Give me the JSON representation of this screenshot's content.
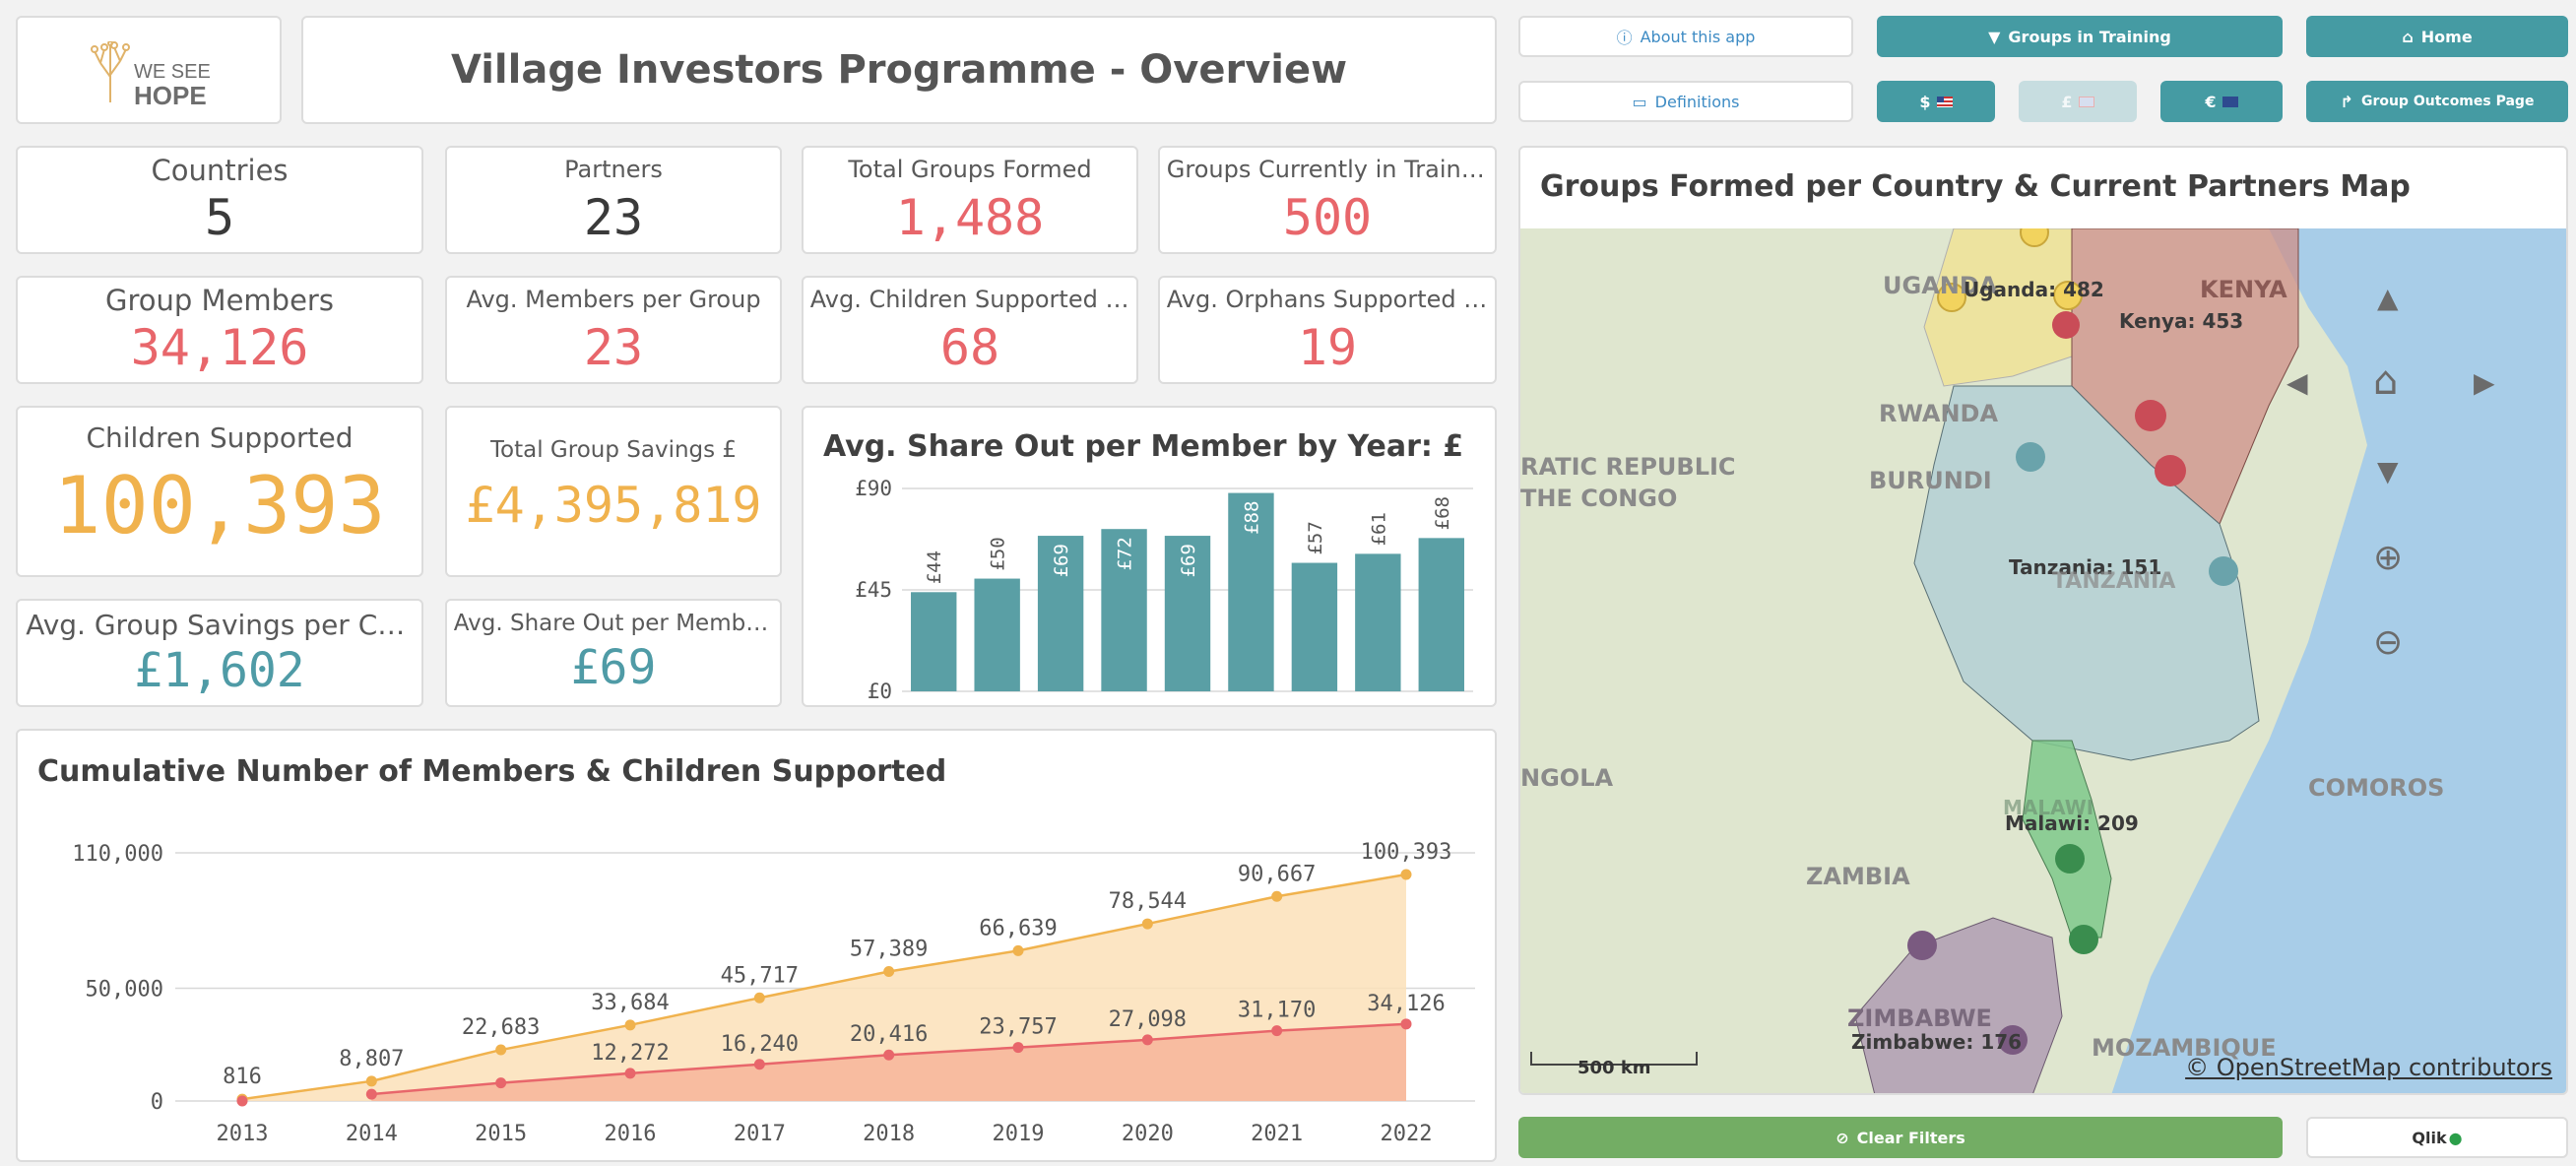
{
  "header": {
    "logo_text_top": "WE SEE",
    "logo_text_bottom": "HOPE",
    "title": "Village Investors Programme - Overview"
  },
  "nav": {
    "about": "About this app",
    "groups_in_training": "Groups in Training",
    "home": "Home",
    "definitions": "Definitions",
    "currency_usd": "$",
    "currency_gbp": "£",
    "currency_eur": "€",
    "group_outcomes": "Group Outcomes Page",
    "clear_filters": "Clear Filters",
    "qlik": "Qlik"
  },
  "kpis": {
    "countries": {
      "label": "Countries",
      "value": "5"
    },
    "partners": {
      "label": "Partners",
      "value": "23"
    },
    "total_groups": {
      "label": "Total Groups Formed",
      "value": "1,488"
    },
    "groups_training": {
      "label": "Groups Currently in Training",
      "value": "500"
    },
    "group_members": {
      "label": "Group Members",
      "value": "34,126"
    },
    "avg_members": {
      "label": "Avg. Members per Group",
      "value": "23"
    },
    "avg_children": {
      "label": "Avg. Children Supported per G...",
      "value": "68"
    },
    "avg_orphans": {
      "label": "Avg. Orphans Supported per ...",
      "value": "19"
    },
    "children_supported": {
      "label": "Children Supported",
      "value": "100,393"
    },
    "total_savings": {
      "label": "Total Group Savings £",
      "value": "£4,395,819"
    },
    "avg_savings_cycle": {
      "label": "Avg. Group Savings per Cycle £",
      "value": "£1,602"
    },
    "avg_share_out": {
      "label": "Avg. Share Out per Member £",
      "value": "£69"
    }
  },
  "colors": {
    "teal": "#459ba3",
    "red": "#e8666b",
    "orange": "#f0b24d",
    "blue_value": "#4f9ba6"
  },
  "chart_data": [
    {
      "type": "bar",
      "title": "Avg. Share Out per Member by Year: £",
      "categories": [
        "",
        "",
        "",
        "",
        "",
        "",
        "",
        "",
        ""
      ],
      "values": [
        44,
        50,
        69,
        72,
        69,
        88,
        57,
        61,
        68
      ],
      "data_labels": [
        "£44",
        "£50",
        "£69",
        "£72",
        "£69",
        "£88",
        "£57",
        "£61",
        "£68"
      ],
      "yticks": [
        "£0",
        "£45",
        "£90"
      ],
      "ylim": [
        0,
        90
      ],
      "color": "#5a9fa5"
    },
    {
      "type": "area",
      "title": "Cumulative Number of Members & Children Supported",
      "x": [
        "2013",
        "2014",
        "2015",
        "2016",
        "2017",
        "2018",
        "2019",
        "2020",
        "2021",
        "2022"
      ],
      "series": [
        {
          "values": [
            816,
            8807,
            22683,
            33684,
            45717,
            57389,
            66639,
            78544,
            90667,
            100393
          ],
          "color": "#f0b24d",
          "fill": "#fbe1b9"
        },
        {
          "values": [
            null,
            3000,
            8000,
            12272,
            16240,
            20416,
            23757,
            27098,
            31170,
            34126
          ],
          "color": "#e8666b",
          "fill": "#f7b79c"
        }
      ],
      "labels_top": [
        "816",
        "8,807",
        "22,683",
        "33,684",
        "45,717",
        "57,389",
        "66,639",
        "78,544",
        "90,667",
        "100,393"
      ],
      "labels_bottom": [
        "",
        "",
        "",
        "12,272",
        "16,240",
        "20,416",
        "23,757",
        "27,098",
        "31,170",
        "34,126"
      ],
      "yticks": [
        "0",
        "50,000",
        "110,000"
      ],
      "ylim": [
        0,
        110000
      ]
    }
  ],
  "map": {
    "title": "Groups Formed per Country & Current Partners Map",
    "labels": {
      "uganda_name": "UGANDA",
      "uganda_count": "Uganda: 482",
      "kenya_name": "KENYA",
      "kenya_count": "Kenya: 453",
      "rwanda": "RWANDA",
      "burundi": "BURUNDI",
      "drc_line1": "RATIC REPUBLIC",
      "drc_line2": "THE CONGO",
      "tanzania_name": "TANZANIA",
      "tanzania_count": "Tanzania: 151",
      "angola": "NGOLA",
      "zambia": "ZAMBIA",
      "malawi_name": "MALAWI",
      "malawi_count": "Malawi: 209",
      "zimbabwe_name": "ZIMBABWE",
      "zimbabwe_count": "Zimbabwe: 176",
      "mozambique": "MOZAMBIQUE",
      "comoros": "COMOROS"
    },
    "scale": "500 km",
    "attribution": "© OpenStreetMap contributors"
  }
}
